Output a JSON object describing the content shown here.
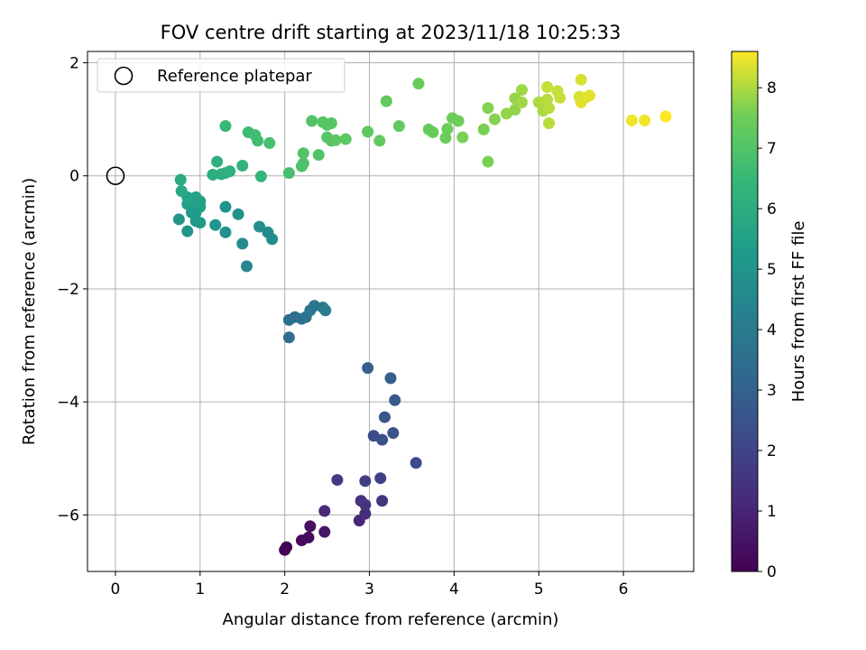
{
  "chart_data": {
    "type": "scatter",
    "title": "FOV centre drift starting at 2023/11/18 10:25:33",
    "xlabel": "Angular distance from reference (arcmin)",
    "ylabel": "Rotation from reference (arcmin)",
    "xlim": [
      -0.33,
      6.83
    ],
    "ylim": [
      -7.0,
      2.2
    ],
    "xticks": [
      0,
      1,
      2,
      3,
      4,
      5,
      6
    ],
    "yticks": [
      -6,
      -4,
      -2,
      0,
      2
    ],
    "xtick_labels": [
      "0",
      "1",
      "2",
      "3",
      "4",
      "5",
      "6"
    ],
    "ytick_labels": [
      "−6",
      "−4",
      "−2",
      "0",
      "2"
    ],
    "grid": true,
    "legend": {
      "location": "upper-left",
      "entries": [
        "Reference platepar"
      ]
    },
    "reference_point": {
      "x": 0,
      "y": 0
    },
    "colorbar": {
      "label": "Hours from first FF file",
      "range": [
        0,
        8.6
      ],
      "ticks": [
        0,
        1,
        2,
        3,
        4,
        5,
        6,
        7,
        8
      ],
      "tick_labels": [
        "0",
        "1",
        "2",
        "3",
        "4",
        "5",
        "6",
        "7",
        "8"
      ],
      "colormap": "viridis"
    },
    "series": [
      {
        "points": [
          {
            "x": 2.0,
            "y": -6.62,
            "c": 0.05
          },
          {
            "x": 2.02,
            "y": -6.57,
            "c": 0.1
          },
          {
            "x": 2.2,
            "y": -6.45,
            "c": 0.2
          },
          {
            "x": 2.28,
            "y": -6.4,
            "c": 0.3
          },
          {
            "x": 2.3,
            "y": -6.2,
            "c": 0.4
          },
          {
            "x": 2.47,
            "y": -6.3,
            "c": 0.6
          },
          {
            "x": 2.47,
            "y": -5.93,
            "c": 1.1
          },
          {
            "x": 2.88,
            "y": -6.1,
            "c": 1.0
          },
          {
            "x": 2.9,
            "y": -5.75,
            "c": 1.4
          },
          {
            "x": 2.95,
            "y": -5.98,
            "c": 1.2
          },
          {
            "x": 2.95,
            "y": -5.82,
            "c": 1.5
          },
          {
            "x": 3.15,
            "y": -5.75,
            "c": 1.5
          },
          {
            "x": 2.62,
            "y": -5.38,
            "c": 1.7
          },
          {
            "x": 2.95,
            "y": -5.4,
            "c": 1.8
          },
          {
            "x": 3.13,
            "y": -5.35,
            "c": 1.9
          },
          {
            "x": 3.55,
            "y": -5.08,
            "c": 2.2
          },
          {
            "x": 3.05,
            "y": -4.6,
            "c": 2.3
          },
          {
            "x": 3.15,
            "y": -4.67,
            "c": 2.4
          },
          {
            "x": 3.28,
            "y": -4.55,
            "c": 2.5
          },
          {
            "x": 3.18,
            "y": -4.27,
            "c": 2.6
          },
          {
            "x": 3.3,
            "y": -3.97,
            "c": 2.7
          },
          {
            "x": 3.25,
            "y": -3.58,
            "c": 2.9
          },
          {
            "x": 2.98,
            "y": -3.4,
            "c": 3.0
          },
          {
            "x": 2.05,
            "y": -2.86,
            "c": 3.4
          },
          {
            "x": 2.05,
            "y": -2.55,
            "c": 3.5
          },
          {
            "x": 2.12,
            "y": -2.5,
            "c": 3.6
          },
          {
            "x": 2.2,
            "y": -2.53,
            "c": 3.6
          },
          {
            "x": 2.25,
            "y": -2.5,
            "c": 3.7
          },
          {
            "x": 2.3,
            "y": -2.38,
            "c": 3.8
          },
          {
            "x": 2.35,
            "y": -2.3,
            "c": 3.9
          },
          {
            "x": 2.45,
            "y": -2.33,
            "c": 3.9
          },
          {
            "x": 2.48,
            "y": -2.38,
            "c": 4.0
          },
          {
            "x": 1.55,
            "y": -1.6,
            "c": 4.5
          },
          {
            "x": 1.5,
            "y": -1.2,
            "c": 4.6
          },
          {
            "x": 1.8,
            "y": -1.0,
            "c": 4.7
          },
          {
            "x": 1.85,
            "y": -1.12,
            "c": 4.7
          },
          {
            "x": 1.7,
            "y": -0.9,
            "c": 4.8
          },
          {
            "x": 1.3,
            "y": -1.0,
            "c": 4.9
          },
          {
            "x": 1.45,
            "y": -0.68,
            "c": 4.9
          },
          {
            "x": 1.3,
            "y": -0.55,
            "c": 5.0
          },
          {
            "x": 1.18,
            "y": -0.87,
            "c": 5.0
          },
          {
            "x": 0.85,
            "y": -0.98,
            "c": 5.1
          },
          {
            "x": 0.75,
            "y": -0.77,
            "c": 5.1
          },
          {
            "x": 0.9,
            "y": -0.65,
            "c": 5.2
          },
          {
            "x": 0.95,
            "y": -0.8,
            "c": 5.2
          },
          {
            "x": 1.0,
            "y": -0.83,
            "c": 5.3
          },
          {
            "x": 0.95,
            "y": -0.65,
            "c": 5.3
          },
          {
            "x": 1.0,
            "y": -0.55,
            "c": 5.4
          },
          {
            "x": 0.85,
            "y": -0.5,
            "c": 5.4
          },
          {
            "x": 0.9,
            "y": -0.45,
            "c": 5.5
          },
          {
            "x": 1.0,
            "y": -0.45,
            "c": 5.5
          },
          {
            "x": 0.85,
            "y": -0.38,
            "c": 5.6
          },
          {
            "x": 0.95,
            "y": -0.38,
            "c": 5.6
          },
          {
            "x": 0.78,
            "y": -0.27,
            "c": 5.8
          },
          {
            "x": 0.77,
            "y": -0.07,
            "c": 5.9
          },
          {
            "x": 1.15,
            "y": 0.02,
            "c": 6.0
          },
          {
            "x": 1.25,
            "y": 0.03,
            "c": 6.1
          },
          {
            "x": 1.3,
            "y": 0.05,
            "c": 6.1
          },
          {
            "x": 1.35,
            "y": 0.08,
            "c": 6.2
          },
          {
            "x": 1.2,
            "y": 0.25,
            "c": 6.2
          },
          {
            "x": 1.5,
            "y": 0.18,
            "c": 6.3
          },
          {
            "x": 1.72,
            "y": -0.01,
            "c": 6.4
          },
          {
            "x": 1.3,
            "y": 0.88,
            "c": 6.5
          },
          {
            "x": 1.57,
            "y": 0.77,
            "c": 6.6
          },
          {
            "x": 1.65,
            "y": 0.72,
            "c": 6.7
          },
          {
            "x": 1.68,
            "y": 0.62,
            "c": 6.7
          },
          {
            "x": 1.82,
            "y": 0.58,
            "c": 6.8
          },
          {
            "x": 2.05,
            "y": 0.05,
            "c": 6.8
          },
          {
            "x": 2.2,
            "y": 0.17,
            "c": 6.9
          },
          {
            "x": 2.22,
            "y": 0.22,
            "c": 6.9
          },
          {
            "x": 2.22,
            "y": 0.4,
            "c": 7.0
          },
          {
            "x": 2.4,
            "y": 0.37,
            "c": 7.0
          },
          {
            "x": 2.32,
            "y": 0.97,
            "c": 7.0
          },
          {
            "x": 2.45,
            "y": 0.95,
            "c": 7.1
          },
          {
            "x": 2.5,
            "y": 0.9,
            "c": 7.1
          },
          {
            "x": 2.55,
            "y": 0.93,
            "c": 7.1
          },
          {
            "x": 2.5,
            "y": 0.68,
            "c": 7.1
          },
          {
            "x": 2.55,
            "y": 0.62,
            "c": 7.1
          },
          {
            "x": 2.6,
            "y": 0.63,
            "c": 7.2
          },
          {
            "x": 2.72,
            "y": 0.65,
            "c": 7.2
          },
          {
            "x": 2.98,
            "y": 0.78,
            "c": 7.2
          },
          {
            "x": 3.12,
            "y": 0.62,
            "c": 7.3
          },
          {
            "x": 3.2,
            "y": 1.32,
            "c": 7.3
          },
          {
            "x": 3.35,
            "y": 0.88,
            "c": 7.3
          },
          {
            "x": 3.58,
            "y": 1.63,
            "c": 7.4
          },
          {
            "x": 3.7,
            "y": 0.82,
            "c": 7.4
          },
          {
            "x": 3.75,
            "y": 0.77,
            "c": 7.4
          },
          {
            "x": 3.9,
            "y": 0.67,
            "c": 7.5
          },
          {
            "x": 3.92,
            "y": 0.83,
            "c": 7.5
          },
          {
            "x": 3.98,
            "y": 1.02,
            "c": 7.5
          },
          {
            "x": 4.05,
            "y": 0.97,
            "c": 7.5
          },
          {
            "x": 4.1,
            "y": 0.68,
            "c": 7.6
          },
          {
            "x": 4.35,
            "y": 0.82,
            "c": 7.6
          },
          {
            "x": 4.4,
            "y": 0.25,
            "c": 7.6
          },
          {
            "x": 4.4,
            "y": 1.2,
            "c": 7.7
          },
          {
            "x": 4.48,
            "y": 1.0,
            "c": 7.7
          },
          {
            "x": 4.62,
            "y": 1.1,
            "c": 7.8
          },
          {
            "x": 4.72,
            "y": 1.17,
            "c": 7.8
          },
          {
            "x": 4.72,
            "y": 1.37,
            "c": 7.8
          },
          {
            "x": 4.8,
            "y": 1.3,
            "c": 7.9
          },
          {
            "x": 4.8,
            "y": 1.52,
            "c": 7.9
          },
          {
            "x": 5.0,
            "y": 1.3,
            "c": 8.0
          },
          {
            "x": 5.05,
            "y": 1.15,
            "c": 8.0
          },
          {
            "x": 5.08,
            "y": 1.25,
            "c": 8.0
          },
          {
            "x": 5.1,
            "y": 1.35,
            "c": 8.1
          },
          {
            "x": 5.12,
            "y": 1.2,
            "c": 8.1
          },
          {
            "x": 5.12,
            "y": 0.93,
            "c": 8.1
          },
          {
            "x": 5.1,
            "y": 1.57,
            "c": 8.2
          },
          {
            "x": 5.22,
            "y": 1.5,
            "c": 8.2
          },
          {
            "x": 5.25,
            "y": 1.38,
            "c": 8.2
          },
          {
            "x": 5.5,
            "y": 1.7,
            "c": 8.3
          },
          {
            "x": 5.48,
            "y": 1.4,
            "c": 8.3
          },
          {
            "x": 5.5,
            "y": 1.3,
            "c": 8.4
          },
          {
            "x": 5.55,
            "y": 1.38,
            "c": 8.4
          },
          {
            "x": 5.6,
            "y": 1.42,
            "c": 8.4
          },
          {
            "x": 6.1,
            "y": 0.98,
            "c": 8.5
          },
          {
            "x": 6.25,
            "y": 0.98,
            "c": 8.5
          },
          {
            "x": 6.5,
            "y": 1.05,
            "c": 8.6
          }
        ]
      }
    ]
  }
}
